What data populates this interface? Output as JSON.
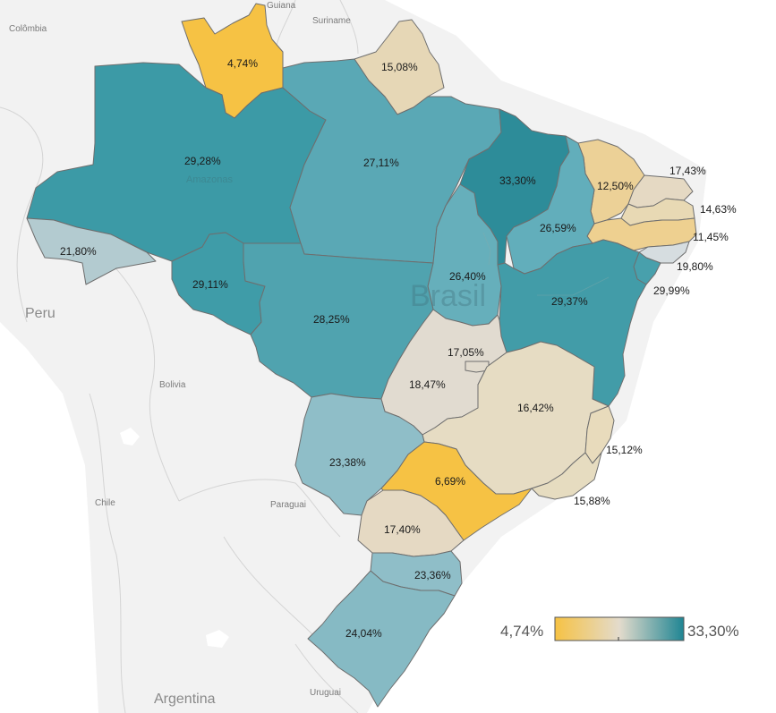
{
  "countries": {
    "guiana": "Guiana",
    "suriname": "Suriname",
    "colombia": "Colômbia",
    "peru": "Peru",
    "bolivia": "Bolivia",
    "chile": "Chile",
    "paraguai": "Paraguai",
    "argentina": "Argentina",
    "uruguai": "Uruguai",
    "brasil": "Brasil",
    "amazonas": "Amazonas"
  },
  "states": {
    "roraima": {
      "value": "4,74%",
      "color": "#f6c244"
    },
    "amapa": {
      "value": "15,08%",
      "color": "#e6d7b6"
    },
    "amazonas": {
      "value": "29,28%",
      "color": "#3c9aa6"
    },
    "para": {
      "value": "27,11%",
      "color": "#5aa8b5"
    },
    "maranhao": {
      "value": "33,30%",
      "color": "#2d8c99"
    },
    "ceara": {
      "value": "12,50%",
      "color": "#ecd197"
    },
    "rio_grande_do_norte": {
      "value": "17,43%",
      "color": "#e5d9c3"
    },
    "paraiba": {
      "value": "14,63%",
      "color": "#e8d9b4"
    },
    "pernambuco": {
      "value": "11,45%",
      "color": "#eed090"
    },
    "alagoas": {
      "value": "19,80%",
      "color": "#d6dde0"
    },
    "sergipe": {
      "value": "29,99%",
      "color": "#48a0ac"
    },
    "piaui": {
      "value": "26,59%",
      "color": "#62aebb"
    },
    "tocantins": {
      "value": "26,40%",
      "color": "#66afbb"
    },
    "bahia": {
      "value": "29,37%",
      "color": "#429ca8"
    },
    "acre": {
      "value": "21,80%",
      "color": "#b3cbd0"
    },
    "rondonia": {
      "value": "29,11%",
      "color": "#3f9ca8"
    },
    "mato_grosso": {
      "value": "28,25%",
      "color": "#50a3af"
    },
    "distrito_federal": {
      "value": "17,05%",
      "color": "#e1dacd"
    },
    "goias": {
      "value": "18,47%",
      "color": "#e1dbd0"
    },
    "minas_gerais": {
      "value": "16,42%",
      "color": "#e6dcc3"
    },
    "espirito_santo": {
      "value": "15,12%",
      "color": "#e8dbbc"
    },
    "rio_de_janeiro": {
      "value": "15,88%",
      "color": "#e6dcc0"
    },
    "mato_grosso_do_sul": {
      "value": "23,38%",
      "color": "#8fbec8"
    },
    "sao_paulo": {
      "value": "6,69%",
      "color": "#f6c244"
    },
    "parana": {
      "value": "17,40%",
      "color": "#e5d9c3"
    },
    "santa_catarina": {
      "value": "23,36%",
      "color": "#8fbec8"
    },
    "rio_grande_do_sul": {
      "value": "24,04%",
      "color": "#86bac4"
    }
  },
  "legend": {
    "min_label": "4,74%",
    "max_label": "33,30%",
    "min_color": "#f6c244",
    "mid_color": "#e3dbcc",
    "max_color": "#1f8593"
  }
}
